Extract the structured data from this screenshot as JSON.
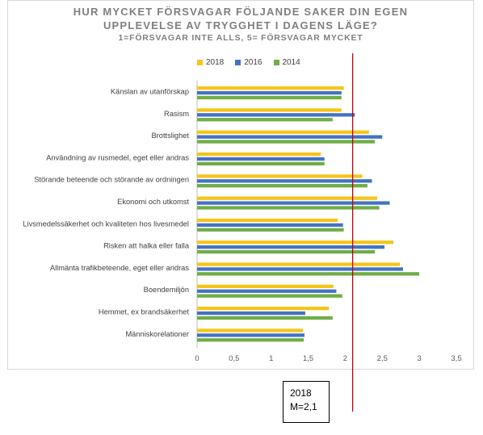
{
  "chart_data": {
    "type": "bar",
    "orientation": "horizontal",
    "title_line1": "HUR MYCKET FÖRSVAGAR FÖLJANDE SAKER DIN EGEN",
    "title_line2": "UPPLEVELSE AV TRYGGHET I DAGENS LÄGE?",
    "subtitle": "1=FÖRSVAGAR INTE ALLS, 5= FÖRSVAGAR MYCKET",
    "categories": [
      "Känslan av utanförskap",
      "Rasism",
      "Brottslighet",
      "Användning av rusmedel, eget eller andras",
      "Störande beteende och störande av ordningen",
      "Ekonomi och utkomst",
      "Livsmedelssäkerhet och kvaliteten hos livesmedel",
      "Risken att halka eller falla",
      "Allmänta trafikbeteende, eget eller andras",
      "Boendemiljön",
      "Hemmet, ex brandsäkerhet",
      "Människorelationer"
    ],
    "series": [
      {
        "name": "2018",
        "color": "#f5c518",
        "values": [
          1.98,
          1.95,
          2.32,
          1.67,
          2.23,
          2.43,
          1.9,
          2.65,
          2.74,
          1.84,
          1.78,
          1.43
        ]
      },
      {
        "name": "2016",
        "color": "#4472c4",
        "values": [
          1.95,
          2.13,
          2.5,
          1.72,
          2.36,
          2.6,
          1.97,
          2.53,
          2.78,
          1.88,
          1.46,
          1.45
        ]
      },
      {
        "name": "2014",
        "color": "#70ad47",
        "values": [
          1.95,
          1.83,
          2.4,
          1.72,
          2.3,
          2.46,
          1.98,
          2.4,
          3.0,
          1.96,
          1.83,
          1.44
        ]
      }
    ],
    "x_ticks": [
      "0",
      "0,5",
      "1",
      "1,5",
      "2",
      "2,5",
      "3",
      "3,5"
    ],
    "xlim": [
      0,
      3.5
    ],
    "reference_line": {
      "value": 2.1,
      "color": "#c00000"
    },
    "legend_position": "top"
  },
  "annotation": {
    "line1": "2018",
    "line2": "M=2,1"
  }
}
